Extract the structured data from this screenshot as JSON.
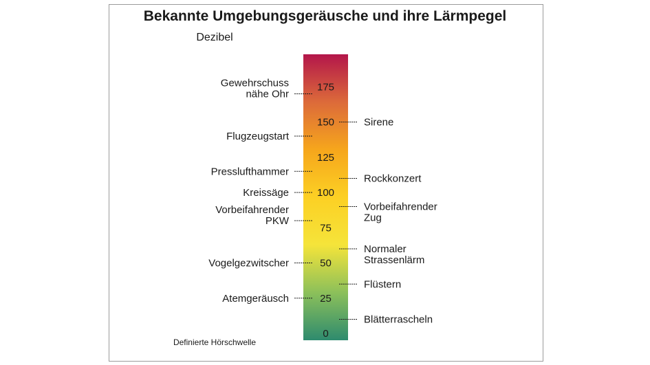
{
  "chart_data": {
    "type": "scale",
    "title": "Bekannte Umgebungsgeräusche und ihre Lärmpegel",
    "unit_label": "Dezibel",
    "footer": "Definierte Hörschwelle",
    "ticks": [
      0,
      25,
      50,
      75,
      100,
      125,
      150,
      175
    ],
    "ylim": [
      0,
      190
    ],
    "gradient_colors": [
      "#2e8b6e",
      "#8cc05a",
      "#f5e43a",
      "#fcd024",
      "#f6a61c",
      "#dc6a3a",
      "#b3164a"
    ],
    "left_annotations": [
      {
        "lines": [
          "Gewehrschuss",
          "nähe Ohr"
        ],
        "value": 170
      },
      {
        "lines": [
          "Flugzeugstart"
        ],
        "value": 140
      },
      {
        "lines": [
          "Presslufthammer"
        ],
        "value": 115
      },
      {
        "lines": [
          "Kreissäge"
        ],
        "value": 100
      },
      {
        "lines": [
          "Vorbeifahrender",
          "PKW"
        ],
        "value": 80
      },
      {
        "lines": [
          "Vogelgezwitscher"
        ],
        "value": 50
      },
      {
        "lines": [
          "Atemgeräusch"
        ],
        "value": 25
      }
    ],
    "right_annotations": [
      {
        "lines": [
          "Sirene"
        ],
        "value": 150
      },
      {
        "lines": [
          "Rockkonzert"
        ],
        "value": 110
      },
      {
        "lines": [
          "Vorbeifahrender",
          "Zug"
        ],
        "value": 90
      },
      {
        "lines": [
          "Normaler",
          "Strassenlärm"
        ],
        "value": 60
      },
      {
        "lines": [
          "Flüstern"
        ],
        "value": 35
      },
      {
        "lines": [
          "Blätterrascheln"
        ],
        "value": 10
      }
    ]
  }
}
